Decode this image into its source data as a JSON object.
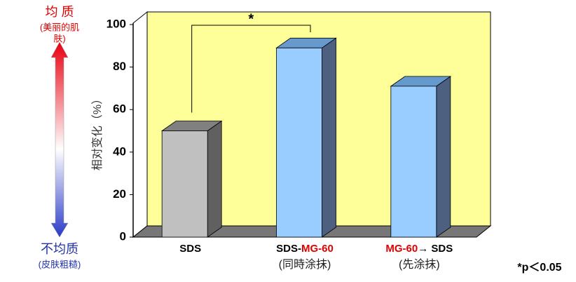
{
  "chart_data": {
    "type": "bar3d",
    "y_label": "相对变化（%）",
    "categories": [
      [
        {
          "text": "SDS",
          "color": "#000000"
        }
      ],
      [
        {
          "text": "SDS-",
          "color": "#000000"
        },
        {
          "text": "MG-60",
          "color": "#e00000"
        }
      ],
      [
        {
          "text": "MG-60",
          "color": "#e00000"
        },
        {
          "text": "→ SDS",
          "color": "#000000"
        }
      ]
    ],
    "category_sublabels": [
      null,
      "(同時涂抹)",
      "(先涂抹)"
    ],
    "values": [
      50,
      89,
      71
    ],
    "colors": [
      "#c0c0c0",
      "#99ccff",
      "#99ccff"
    ],
    "top_colors": [
      "#808080",
      "#6699cc",
      "#6699cc"
    ],
    "side_colors": [
      "#606060",
      "#4d6080",
      "#4d6080"
    ],
    "ylim": [
      0,
      100
    ],
    "yticks": [
      0,
      20,
      40,
      60,
      80,
      100
    ],
    "wall_color": "#ffff99",
    "significance": {
      "text": "*",
      "between": [
        0,
        1
      ]
    },
    "footnote": "*p＜0.05",
    "scale_legend": {
      "top_title": "均 质",
      "top_note": [
        "(美丽的肌",
        "肤)"
      ],
      "bottom_title": "不均质",
      "bottom_note": "(皮肤粗糙)"
    }
  }
}
